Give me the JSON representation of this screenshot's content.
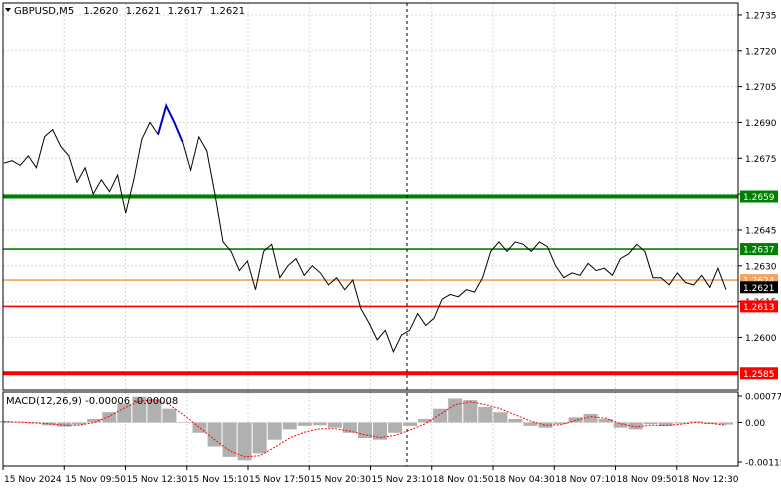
{
  "header": {
    "symbol": "GBPUSD,M5",
    "open": "1.2620",
    "high": "1.2621",
    "low": "1.2617",
    "close": "1.2621"
  },
  "colors": {
    "background": "#ffffff",
    "grid": "#d8d8d8",
    "price_line": "#000000",
    "highlight_segment": "#0000cc",
    "support_resistance_green": "#008000",
    "support_resistance_red": "#ff0000",
    "bid_line": "#f4a460",
    "macd_histogram": "#b0b0b0",
    "macd_signal": "#ff0000",
    "crosshair": "#000000"
  },
  "chart_data": [
    {
      "type": "line",
      "name": "price",
      "y_axis": {
        "ylim": [
          1.2578,
          1.274
        ],
        "tick_labels": [
          "1.2735",
          "1.2720",
          "1.2705",
          "1.2690",
          "1.2675",
          "1.2660",
          "1.2645",
          "1.2630",
          "1.2615",
          "1.2600"
        ]
      },
      "x_axis": {
        "tick_labels": [
          "15 Nov 2024",
          "15 Nov 09:50",
          "15 Nov 12:30",
          "15 Nov 15:10",
          "15 Nov 17:50",
          "15 Nov 20:30",
          "15 Nov 23:10",
          "18 Nov 01:50",
          "18 Nov 04:30",
          "18 Nov 07:10",
          "18 Nov 09:50",
          "18 Nov 12:30"
        ]
      },
      "values": [
        1.2673,
        1.2674,
        1.2672,
        1.2676,
        1.2671,
        1.2684,
        1.2687,
        1.268,
        1.2676,
        1.2665,
        1.2671,
        1.266,
        1.2666,
        1.2661,
        1.2668,
        1.2652,
        1.2666,
        1.2683,
        1.269,
        1.2685,
        1.2697,
        1.269,
        1.2682,
        1.267,
        1.2684,
        1.2678,
        1.266,
        1.264,
        1.2636,
        1.2628,
        1.2632,
        1.262,
        1.2636,
        1.2639,
        1.2625,
        1.263,
        1.2633,
        1.2626,
        1.263,
        1.2627,
        1.2622,
        1.2625,
        1.262,
        1.2624,
        1.2612,
        1.2606,
        1.2599,
        1.2603,
        1.2594,
        1.2601,
        1.2603,
        1.261,
        1.2605,
        1.2608,
        1.2616,
        1.2618,
        1.2617,
        1.262,
        1.2619,
        1.2625,
        1.2636,
        1.264,
        1.2636,
        1.264,
        1.2639,
        1.2636,
        1.264,
        1.2638,
        1.263,
        1.2625,
        1.2627,
        1.2626,
        1.2631,
        1.2628,
        1.2629,
        1.2626,
        1.2633,
        1.2635,
        1.2639,
        1.2636,
        1.2625,
        1.2625,
        1.2622,
        1.2627,
        1.2623,
        1.2622,
        1.2626,
        1.2621,
        1.2629,
        1.262
      ],
      "highlight_segment": {
        "from_index": 19,
        "to_index": 22
      },
      "horizontal_levels": [
        {
          "value": 1.2659,
          "label": "1.2659",
          "color": "#008000",
          "thick": true
        },
        {
          "value": 1.2637,
          "label": "1.2637",
          "color": "#008000",
          "thick": false
        },
        {
          "value": 1.2624,
          "label": "1.2624",
          "color": "#f4a460",
          "thick": false
        },
        {
          "value": 1.2613,
          "label": "1.2613",
          "color": "#ff0000",
          "thick": false
        },
        {
          "value": 1.2585,
          "label": "1.2585",
          "color": "#ff0000",
          "thick": true
        }
      ],
      "current_price": {
        "value": 1.2621,
        "label": "1.2621"
      }
    },
    {
      "type": "macd",
      "name": "MACD(12,26,9)",
      "label": "MACD(12,26,9) -0.00006 -0.00008",
      "ylim": [
        -0.00115,
        0.00077
      ],
      "tick_labels": [
        "0.00077",
        "0.00",
        "-0.00115"
      ],
      "histogram": [
        4e-05,
        2e-05,
        -3e-05,
        -8e-05,
        -0.00012,
        -6e-05,
        0.0001,
        0.0003,
        0.00055,
        0.00075,
        0.00068,
        0.0004,
        0.0,
        -0.0003,
        -0.0007,
        -0.001,
        -0.0011,
        -0.0009,
        -0.0005,
        -0.0002,
        -0.0001,
        -8e-05,
        -0.00015,
        -0.0003,
        -0.00045,
        -0.0005,
        -0.0003,
        -0.0001,
        0.0001,
        0.0004,
        0.0007,
        0.00065,
        0.00045,
        0.0003,
        0.0001,
        -0.0001,
        -0.00015,
        -5e-05,
        0.00015,
        0.00025,
        0.0001,
        -0.00015,
        -0.0002,
        -5e-05,
        -0.0001,
        -3e-05,
        3e-05,
        -4e-05,
        -6e-05
      ],
      "signal": [
        2e-05,
        1e-05,
        -1e-05,
        -4e-05,
        -8e-05,
        -8e-05,
        0.0,
        0.00018,
        0.00042,
        0.00062,
        0.00066,
        0.00052,
        0.0002,
        -0.00015,
        -0.0005,
        -0.00082,
        -0.001,
        -0.00097,
        -0.00072,
        -0.00045,
        -0.00028,
        -0.00018,
        -0.00018,
        -0.00025,
        -0.00036,
        -0.00044,
        -0.00038,
        -0.00022,
        -4e-05,
        0.00024,
        0.00052,
        0.0006,
        0.00052,
        0.0004,
        0.00022,
        4e-05,
        -8e-05,
        -7e-05,
        6e-05,
        0.00017,
        0.00012,
        -4e-05,
        -0.00013,
        -8e-05,
        -9e-05,
        -5e-05,
        0.0,
        -3e-05,
        -8e-05
      ]
    }
  ]
}
